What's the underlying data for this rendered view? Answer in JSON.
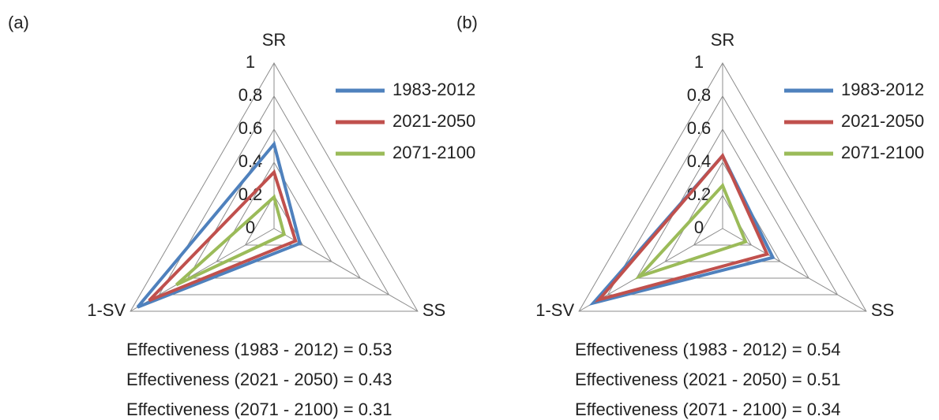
{
  "chart_data": [
    {
      "type": "radar",
      "label": "(a)",
      "axes": [
        "SR",
        "SS",
        "1-SV"
      ],
      "ylim": [
        0,
        1
      ],
      "yticks": [
        0,
        0.2,
        0.4,
        0.6,
        0.8,
        1
      ],
      "grid": true,
      "series": [
        {
          "name": "1983-2012",
          "color": "#4f81bd",
          "values": [
            0.51,
            0.18,
            0.95
          ]
        },
        {
          "name": "2021-2050",
          "color": "#c0504d",
          "values": [
            0.34,
            0.15,
            0.87
          ]
        },
        {
          "name": "2071-2100",
          "color": "#9bbb59",
          "values": [
            0.19,
            0.07,
            0.68
          ]
        }
      ],
      "annotations": [
        "Effectiveness (1983 - 2012) = 0.53",
        "Effectiveness (2021 - 2050) = 0.43",
        "Effectiveness (2071 - 2100) = 0.31"
      ]
    },
    {
      "type": "radar",
      "label": "(b)",
      "axes": [
        "SR",
        "SS",
        "1-SV"
      ],
      "ylim": [
        0,
        1
      ],
      "yticks": [
        0,
        0.2,
        0.4,
        0.6,
        0.8,
        1
      ],
      "grid": true,
      "series": [
        {
          "name": "1983-2012",
          "color": "#4f81bd",
          "values": [
            0.44,
            0.35,
            0.9
          ]
        },
        {
          "name": "2021-2050",
          "color": "#c0504d",
          "values": [
            0.44,
            0.31,
            0.86
          ]
        },
        {
          "name": "2071-2100",
          "color": "#9bbb59",
          "values": [
            0.26,
            0.16,
            0.58
          ]
        }
      ],
      "annotations": [
        "Effectiveness (1983 - 2012) = 0.54",
        "Effectiveness (2021 - 2050) = 0.51",
        "Effectiveness (2071 - 2100) = 0.34"
      ]
    }
  ]
}
